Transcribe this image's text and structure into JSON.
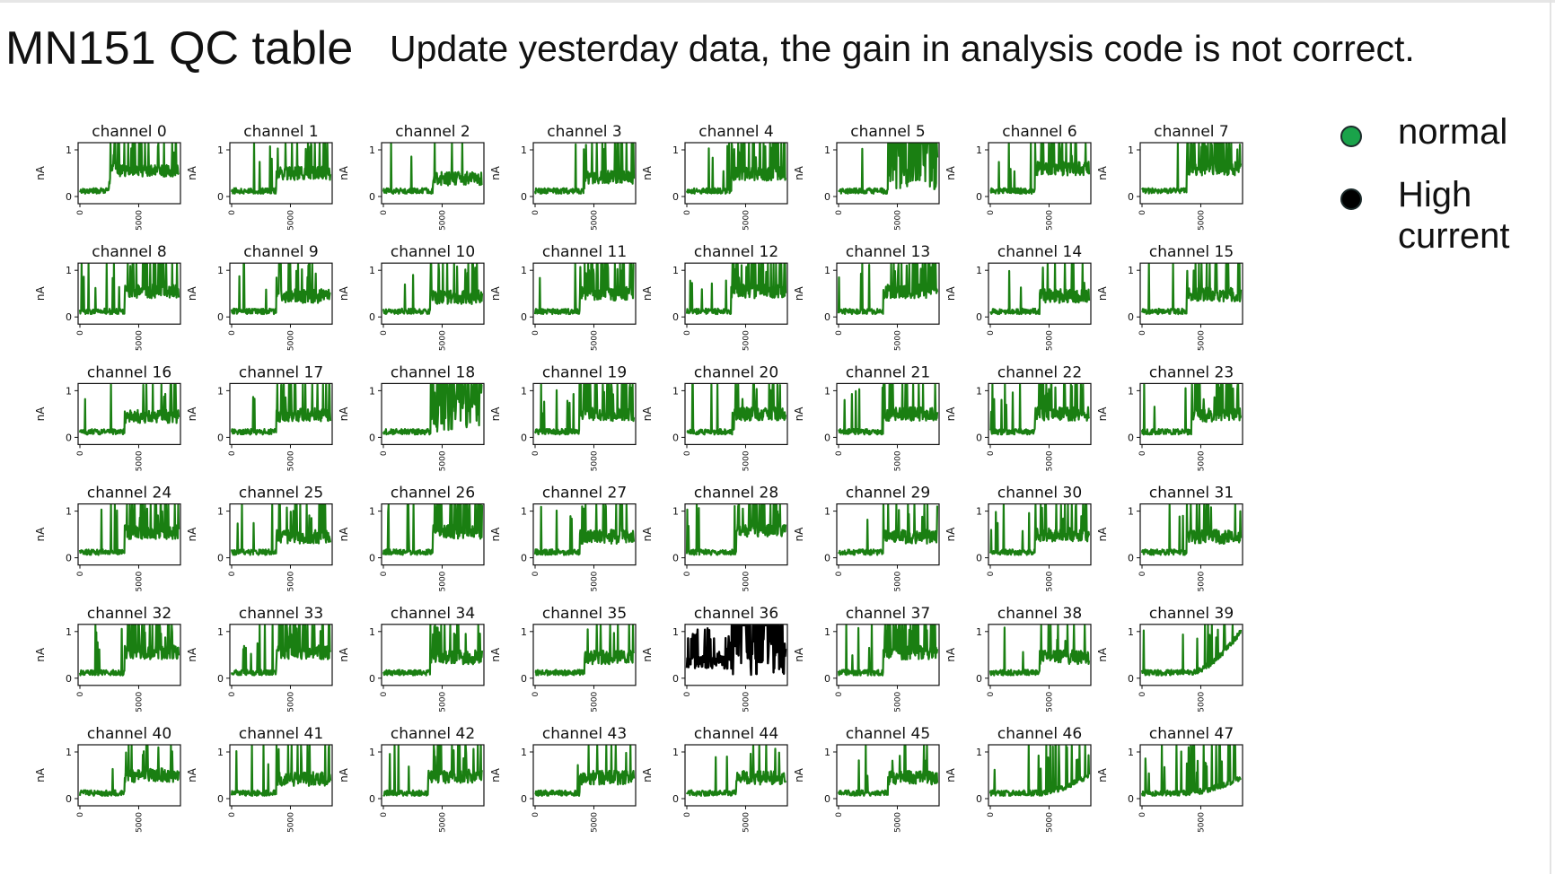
{
  "page": {
    "title": "MN151 QC table",
    "subtitle": "Update yesterday data, the gain in analysis code is not correct."
  },
  "legend": {
    "items": [
      {
        "label": "normal",
        "color": "#1aa34a",
        "icon": "circle-marker"
      },
      {
        "label": "High current",
        "color": "#000000",
        "icon": "circle-marker"
      }
    ]
  },
  "colors": {
    "normal_trace": "#1a7f12",
    "high_current_trace": "#000000"
  },
  "chart_data": {
    "type": "line",
    "grid": false,
    "ylabel": "nA",
    "xlabel": "",
    "y_ticks": [
      "0",
      "1"
    ],
    "x_ticks": [
      "0",
      "5000"
    ],
    "ylim": [
      0,
      1
    ],
    "x_range": [
      0,
      8400
    ],
    "status_legend": [
      "normal",
      "High current"
    ],
    "panels": [
      {
        "title": "channel 0",
        "status": "normal",
        "baseline": 0.12,
        "plateau": 0.55,
        "onset": 0.34,
        "spikes": 0.35,
        "shape": "hump"
      },
      {
        "title": "channel 1",
        "status": "normal",
        "baseline": 0.12,
        "plateau": 0.5,
        "onset": 0.45,
        "spikes": 0.4,
        "shape": "step"
      },
      {
        "title": "channel 2",
        "status": "normal",
        "baseline": 0.12,
        "plateau": 0.38,
        "onset": 0.5,
        "spikes": 0.15,
        "shape": "step"
      },
      {
        "title": "channel 3",
        "status": "normal",
        "baseline": 0.12,
        "plateau": 0.42,
        "onset": 0.5,
        "spikes": 0.2,
        "shape": "step"
      },
      {
        "title": "channel 4",
        "status": "normal",
        "baseline": 0.12,
        "plateau": 0.48,
        "onset": 0.45,
        "spikes": 0.5,
        "shape": "step"
      },
      {
        "title": "channel 5",
        "status": "normal",
        "baseline": 0.12,
        "plateau": 1.0,
        "onset": 0.5,
        "spikes": 0.2,
        "shape": "saturate"
      },
      {
        "title": "channel 6",
        "status": "normal",
        "baseline": 0.12,
        "plateau": 0.6,
        "onset": 0.45,
        "spikes": 0.5,
        "shape": "step"
      },
      {
        "title": "channel 7",
        "status": "normal",
        "baseline": 0.12,
        "plateau": 0.6,
        "onset": 0.45,
        "spikes": 0.7,
        "shape": "step"
      },
      {
        "title": "channel 8",
        "status": "normal",
        "baseline": 0.12,
        "plateau": 0.55,
        "onset": 0.45,
        "spikes": 0.5,
        "shape": "step"
      },
      {
        "title": "channel 9",
        "status": "normal",
        "baseline": 0.12,
        "plateau": 0.45,
        "onset": 0.45,
        "spikes": 0.3,
        "shape": "step"
      },
      {
        "title": "channel 10",
        "status": "normal",
        "baseline": 0.12,
        "plateau": 0.42,
        "onset": 0.48,
        "spikes": 0.3,
        "shape": "step"
      },
      {
        "title": "channel 11",
        "status": "normal",
        "baseline": 0.12,
        "plateau": 0.5,
        "onset": 0.45,
        "spikes": 0.5,
        "shape": "step"
      },
      {
        "title": "channel 12",
        "status": "normal",
        "baseline": 0.12,
        "plateau": 0.55,
        "onset": 0.45,
        "spikes": 0.6,
        "shape": "step"
      },
      {
        "title": "channel 13",
        "status": "normal",
        "baseline": 0.12,
        "plateau": 0.55,
        "onset": 0.45,
        "spikes": 0.6,
        "shape": "step"
      },
      {
        "title": "channel 14",
        "status": "normal",
        "baseline": 0.12,
        "plateau": 0.45,
        "onset": 0.5,
        "spikes": 0.3,
        "shape": "step"
      },
      {
        "title": "channel 15",
        "status": "normal",
        "baseline": 0.12,
        "plateau": 0.48,
        "onset": 0.45,
        "spikes": 0.4,
        "shape": "step"
      },
      {
        "title": "channel 16",
        "status": "normal",
        "baseline": 0.12,
        "plateau": 0.45,
        "onset": 0.45,
        "spikes": 0.3,
        "shape": "step"
      },
      {
        "title": "channel 17",
        "status": "normal",
        "baseline": 0.12,
        "plateau": 0.48,
        "onset": 0.45,
        "spikes": 0.4,
        "shape": "step"
      },
      {
        "title": "channel 18",
        "status": "normal",
        "baseline": 0.12,
        "plateau": 1.0,
        "onset": 0.48,
        "spikes": 0.3,
        "shape": "saturate"
      },
      {
        "title": "channel 19",
        "status": "normal",
        "baseline": 0.12,
        "plateau": 0.5,
        "onset": 0.45,
        "spikes": 0.8,
        "shape": "step"
      },
      {
        "title": "channel 20",
        "status": "normal",
        "baseline": 0.12,
        "plateau": 0.5,
        "onset": 0.48,
        "spikes": 0.3,
        "shape": "step"
      },
      {
        "title": "channel 21",
        "status": "normal",
        "baseline": 0.12,
        "plateau": 0.5,
        "onset": 0.45,
        "spikes": 0.4,
        "shape": "step"
      },
      {
        "title": "channel 22",
        "status": "normal",
        "baseline": 0.12,
        "plateau": 0.5,
        "onset": 0.45,
        "spikes": 0.5,
        "shape": "step"
      },
      {
        "title": "channel 23",
        "status": "normal",
        "baseline": 0.12,
        "plateau": 0.48,
        "onset": 0.5,
        "spikes": 0.5,
        "shape": "step"
      },
      {
        "title": "channel 24",
        "status": "normal",
        "baseline": 0.12,
        "plateau": 0.55,
        "onset": 0.45,
        "spikes": 0.5,
        "shape": "step"
      },
      {
        "title": "channel 25",
        "status": "normal",
        "baseline": 0.12,
        "plateau": 0.45,
        "onset": 0.45,
        "spikes": 0.3,
        "shape": "step"
      },
      {
        "title": "channel 26",
        "status": "normal",
        "baseline": 0.12,
        "plateau": 0.55,
        "onset": 0.5,
        "spikes": 0.6,
        "shape": "step"
      },
      {
        "title": "channel 27",
        "status": "normal",
        "baseline": 0.12,
        "plateau": 0.45,
        "onset": 0.45,
        "spikes": 0.3,
        "shape": "step"
      },
      {
        "title": "channel 28",
        "status": "normal",
        "baseline": 0.12,
        "plateau": 0.6,
        "onset": 0.5,
        "spikes": 0.7,
        "shape": "step"
      },
      {
        "title": "channel 29",
        "status": "normal",
        "baseline": 0.12,
        "plateau": 0.45,
        "onset": 0.45,
        "spikes": 0.3,
        "shape": "step"
      },
      {
        "title": "channel 30",
        "status": "normal",
        "baseline": 0.12,
        "plateau": 0.5,
        "onset": 0.45,
        "spikes": 0.4,
        "shape": "step"
      },
      {
        "title": "channel 31",
        "status": "normal",
        "baseline": 0.12,
        "plateau": 0.45,
        "onset": 0.45,
        "spikes": 0.3,
        "shape": "step"
      },
      {
        "title": "channel 32",
        "status": "normal",
        "baseline": 0.12,
        "plateau": 0.55,
        "onset": 0.45,
        "spikes": 0.5,
        "shape": "step"
      },
      {
        "title": "channel 33",
        "status": "normal",
        "baseline": 0.12,
        "plateau": 0.55,
        "onset": 0.45,
        "spikes": 0.7,
        "shape": "step"
      },
      {
        "title": "channel 34",
        "status": "normal",
        "baseline": 0.12,
        "plateau": 0.45,
        "onset": 0.48,
        "spikes": 0.3,
        "shape": "step"
      },
      {
        "title": "channel 35",
        "status": "normal",
        "baseline": 0.12,
        "plateau": 0.45,
        "onset": 0.5,
        "spikes": 0.3,
        "shape": "step"
      },
      {
        "title": "channel 36",
        "status": "High current",
        "baseline": 0.2,
        "plateau": 0.8,
        "onset": 0.45,
        "spikes": 0.6,
        "shape": "saturate"
      },
      {
        "title": "channel 37",
        "status": "normal",
        "baseline": 0.12,
        "plateau": 0.55,
        "onset": 0.45,
        "spikes": 0.7,
        "shape": "step"
      },
      {
        "title": "channel 38",
        "status": "normal",
        "baseline": 0.12,
        "plateau": 0.45,
        "onset": 0.5,
        "spikes": 0.3,
        "shape": "step"
      },
      {
        "title": "channel 39",
        "status": "normal",
        "baseline": 0.12,
        "plateau": 1.0,
        "onset": 0.5,
        "spikes": 0.2,
        "shape": "ramp"
      },
      {
        "title": "channel 40",
        "status": "normal",
        "baseline": 0.12,
        "plateau": 0.5,
        "onset": 0.45,
        "spikes": 0.3,
        "shape": "step"
      },
      {
        "title": "channel 41",
        "status": "normal",
        "baseline": 0.12,
        "plateau": 0.42,
        "onset": 0.45,
        "spikes": 0.2,
        "shape": "step"
      },
      {
        "title": "channel 42",
        "status": "normal",
        "baseline": 0.12,
        "plateau": 0.48,
        "onset": 0.45,
        "spikes": 0.4,
        "shape": "step"
      },
      {
        "title": "channel 43",
        "status": "normal",
        "baseline": 0.12,
        "plateau": 0.45,
        "onset": 0.45,
        "spikes": 0.2,
        "shape": "step"
      },
      {
        "title": "channel 44",
        "status": "normal",
        "baseline": 0.12,
        "plateau": 0.45,
        "onset": 0.5,
        "spikes": 0.2,
        "shape": "step"
      },
      {
        "title": "channel 45",
        "status": "normal",
        "baseline": 0.12,
        "plateau": 0.45,
        "onset": 0.5,
        "spikes": 0.3,
        "shape": "step"
      },
      {
        "title": "channel 46",
        "status": "normal",
        "baseline": 0.12,
        "plateau": 0.5,
        "onset": 0.5,
        "spikes": 0.5,
        "shape": "ramp"
      },
      {
        "title": "channel 47",
        "status": "normal",
        "baseline": 0.12,
        "plateau": 0.45,
        "onset": 0.45,
        "spikes": 0.7,
        "shape": "ramp"
      }
    ]
  }
}
